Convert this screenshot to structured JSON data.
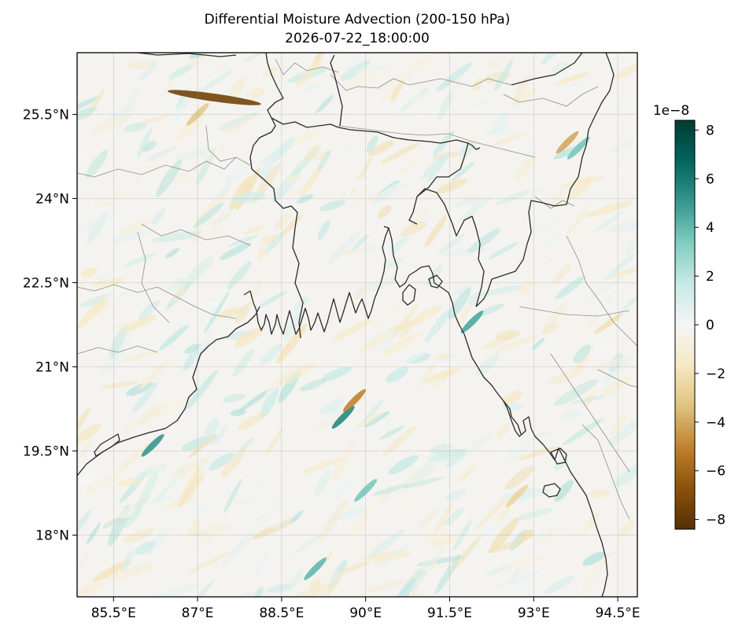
{
  "chart_data": {
    "type": "heatmap",
    "title": "Differential Moisture Advection (200-150 hPa)",
    "subtitle": "2026-07-22_18:00:00",
    "x_ticks": [
      85.5,
      87,
      88.5,
      90,
      91.5,
      93,
      94.5
    ],
    "x_tick_labels": [
      "85.5°E",
      "87°E",
      "88.5°E",
      "90°E",
      "91.5°E",
      "93°E",
      "94.5°E"
    ],
    "y_ticks": [
      25.5,
      24,
      22.5,
      21,
      19.5,
      18
    ],
    "y_tick_labels": [
      "25.5°N",
      "24°N",
      "22.5°N",
      "21°N",
      "19.5°N",
      "18°N"
    ],
    "lon_range": [
      84.85,
      94.85
    ],
    "lat_range": [
      16.9,
      26.6
    ],
    "grid": true,
    "colormap": "BrBG",
    "colorbar": {
      "offset_label": "1e−8",
      "range": [
        -8.4,
        8.4
      ],
      "ticks": [
        8,
        6,
        4,
        2,
        0,
        -2,
        -4,
        -6,
        -8
      ],
      "tick_labels": [
        "8",
        "6",
        "4",
        "2",
        "0",
        "−2",
        "−4",
        "−6",
        "−8"
      ],
      "colors": [
        "#543005",
        "#8c510a",
        "#bf812d",
        "#dfc27d",
        "#f6e8c3",
        "#f5f5f5",
        "#c7eae5",
        "#80cdc1",
        "#35978f",
        "#01665e",
        "#003c30"
      ]
    },
    "features": [
      {
        "name": "strong-negative-band",
        "lon": 87.3,
        "lat": 25.8,
        "value": -7.5
      },
      {
        "name": "negative-band",
        "lon": 87.0,
        "lat": 25.5,
        "value": -3.0
      },
      {
        "name": "positive-streak-coast",
        "lon": 91.9,
        "lat": 21.8,
        "value": 4.5
      },
      {
        "name": "positive-streak-south",
        "lon": 89.6,
        "lat": 20.1,
        "value": 5.5
      },
      {
        "name": "negative-patch-south",
        "lon": 89.8,
        "lat": 20.4,
        "value": -5.0
      },
      {
        "name": "positive-streak-sw",
        "lon": 86.2,
        "lat": 19.6,
        "value": 5.0
      },
      {
        "name": "waves-ne",
        "lon": 93.6,
        "lat": 25.0,
        "value": -4.0
      },
      {
        "name": "waves-ne-pos",
        "lon": 93.8,
        "lat": 24.9,
        "value": 3.5
      },
      {
        "name": "positive-south",
        "lon": 89.1,
        "lat": 17.4,
        "value": 4.0
      },
      {
        "name": "negative-east",
        "lon": 92.7,
        "lat": 18.7,
        "value": -2.5
      },
      {
        "name": "positive-mid",
        "lon": 90.0,
        "lat": 18.8,
        "value": 3.5
      }
    ]
  }
}
